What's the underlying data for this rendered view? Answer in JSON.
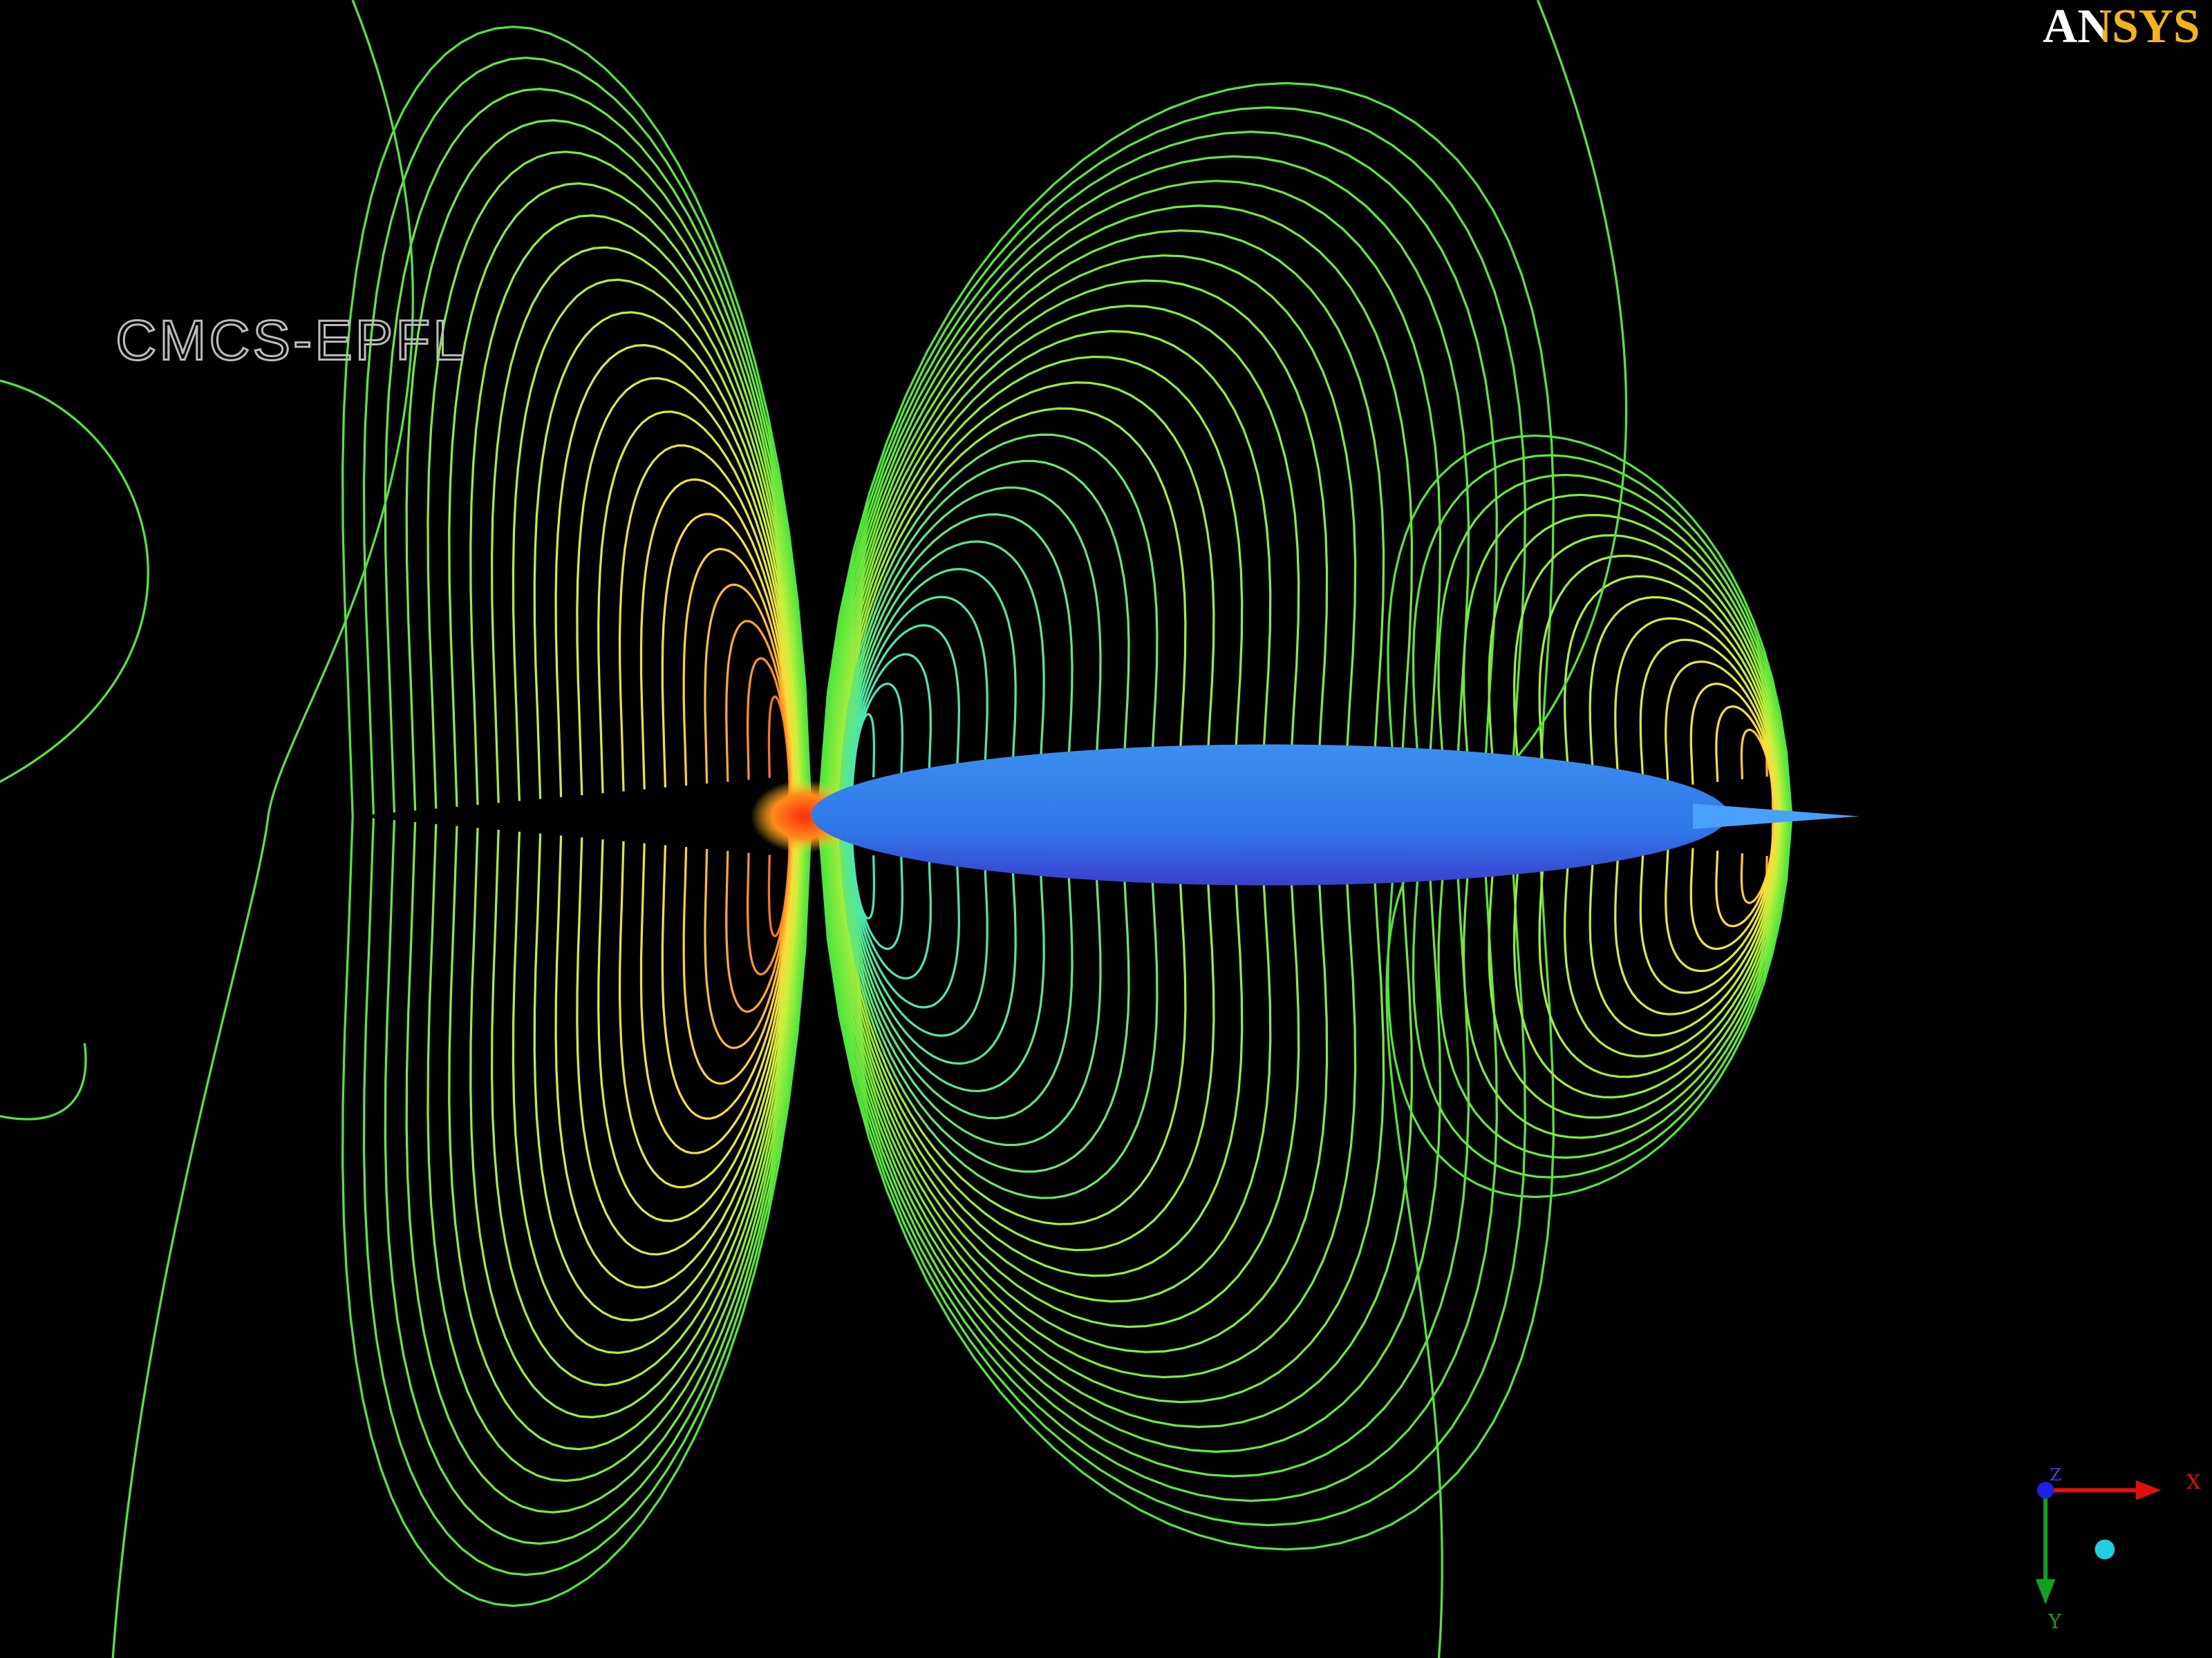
{
  "logo": "ANSYS",
  "watermark": "CMCS-EPFL",
  "triad": {
    "x": "X",
    "y": "Y",
    "z": "Z"
  }
}
